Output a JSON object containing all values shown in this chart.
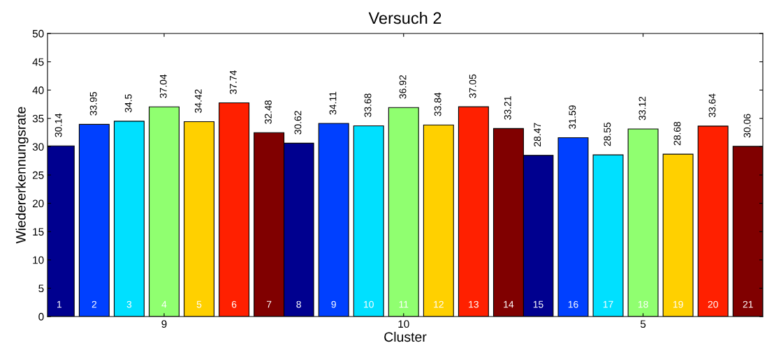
{
  "chart_data": {
    "type": "bar",
    "title": "Versuch 2",
    "xlabel": "Cluster",
    "ylabel": "Wiedererkennungsrate",
    "categories": [
      "9",
      "10",
      "5"
    ],
    "series": [
      {
        "color": "#00008f",
        "values": [
          30.14,
          30.62,
          28.47
        ]
      },
      {
        "color": "#0040ff",
        "values": [
          33.95,
          34.11,
          31.59
        ]
      },
      {
        "color": "#00e0ff",
        "values": [
          34.5,
          33.68,
          28.55
        ]
      },
      {
        "color": "#90ff70",
        "values": [
          37.04,
          36.92,
          33.12
        ]
      },
      {
        "color": "#ffd000",
        "values": [
          34.42,
          33.84,
          28.68
        ]
      },
      {
        "color": "#ff2000",
        "values": [
          37.74,
          37.05,
          33.64
        ]
      },
      {
        "color": "#800000",
        "values": [
          32.48,
          33.21,
          30.06
        ]
      }
    ],
    "annotations": [
      "1",
      "2",
      "3",
      "4",
      "5",
      "6",
      "7",
      "8",
      "9",
      "10",
      "11",
      "12",
      "13",
      "14",
      "15",
      "16",
      "17",
      "18",
      "19",
      "20",
      "21"
    ],
    "ylim": [
      0,
      50
    ],
    "yticks": [
      0,
      5,
      10,
      15,
      20,
      25,
      30,
      35,
      40,
      45,
      50
    ],
    "data_labels": true,
    "grid": false,
    "legend": false
  }
}
